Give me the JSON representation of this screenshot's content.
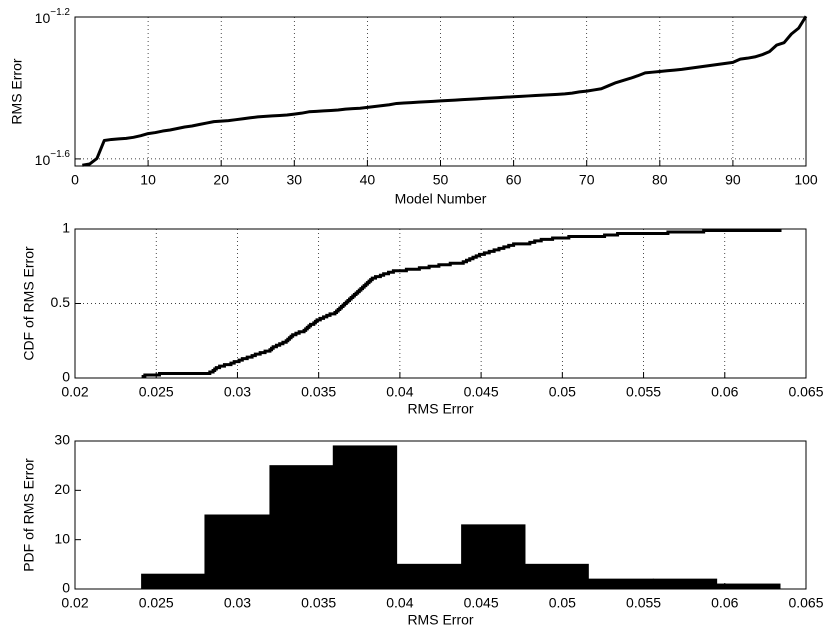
{
  "chart_data": [
    {
      "type": "line",
      "xlabel": "Model Number",
      "ylabel": "RMS Error",
      "yscale": "log",
      "grid": true,
      "color": "#000000",
      "xlim": [
        0,
        100
      ],
      "xticks": [
        0,
        10,
        20,
        30,
        40,
        50,
        60,
        70,
        80,
        90,
        100
      ],
      "ylim": [
        0.023988,
        0.063096
      ],
      "yticks": [
        {
          "value": 0.025119,
          "label": "10^−1.6"
        },
        {
          "value": 0.063096,
          "label": "10^−1.2"
        }
      ],
      "x": [
        1,
        2,
        3,
        4,
        5,
        6,
        7,
        8,
        9,
        10,
        11,
        12,
        13,
        14,
        15,
        16,
        17,
        18,
        19,
        20,
        21,
        22,
        23,
        24,
        25,
        26,
        27,
        28,
        29,
        30,
        31,
        32,
        33,
        34,
        35,
        36,
        37,
        38,
        39,
        40,
        41,
        42,
        43,
        44,
        45,
        46,
        47,
        48,
        49,
        50,
        51,
        52,
        53,
        54,
        55,
        56,
        57,
        58,
        59,
        60,
        61,
        62,
        63,
        64,
        65,
        66,
        67,
        68,
        69,
        70,
        71,
        72,
        73,
        74,
        75,
        76,
        77,
        78,
        79,
        80,
        81,
        82,
        83,
        84,
        85,
        86,
        87,
        88,
        89,
        90,
        91,
        92,
        93,
        94,
        95,
        96,
        97,
        98,
        99,
        100
      ],
      "values": [
        0.0241,
        0.0243,
        0.0252,
        0.0283,
        0.0285,
        0.0286,
        0.0287,
        0.0289,
        0.0292,
        0.0296,
        0.0298,
        0.0301,
        0.0303,
        0.0306,
        0.0309,
        0.0311,
        0.0314,
        0.0317,
        0.032,
        0.0321,
        0.0322,
        0.0324,
        0.0326,
        0.0328,
        0.033,
        0.0331,
        0.0332,
        0.0333,
        0.0334,
        0.0336,
        0.0338,
        0.0341,
        0.0342,
        0.0343,
        0.0344,
        0.0345,
        0.0347,
        0.0348,
        0.0349,
        0.0351,
        0.0353,
        0.0355,
        0.0357,
        0.036,
        0.0361,
        0.0362,
        0.0363,
        0.0364,
        0.0365,
        0.0366,
        0.0367,
        0.0368,
        0.0369,
        0.037,
        0.0371,
        0.0372,
        0.0373,
        0.0374,
        0.0375,
        0.0376,
        0.0377,
        0.0378,
        0.0379,
        0.038,
        0.0381,
        0.0382,
        0.0383,
        0.0385,
        0.0388,
        0.039,
        0.0393,
        0.0396,
        0.0404,
        0.0412,
        0.0418,
        0.0424,
        0.0431,
        0.0439,
        0.0441,
        0.0443,
        0.0445,
        0.0447,
        0.0449,
        0.0452,
        0.0455,
        0.0458,
        0.0461,
        0.0464,
        0.0467,
        0.047,
        0.048,
        0.0483,
        0.0487,
        0.0494,
        0.0504,
        0.0526,
        0.0534,
        0.0565,
        0.0587,
        0.0634
      ]
    },
    {
      "type": "step",
      "xlabel": "RMS Error",
      "ylabel": "CDF of RMS Error",
      "grid": true,
      "color": "#000000",
      "xlim": [
        0.02,
        0.065
      ],
      "xticks": [
        0.02,
        0.025,
        0.03,
        0.035,
        0.04,
        0.045,
        0.05,
        0.055,
        0.06,
        0.065
      ],
      "ylim": [
        0,
        1
      ],
      "yticks": [
        0,
        0.5,
        1
      ],
      "x": [
        0.0241,
        0.0243,
        0.0252,
        0.0283,
        0.0285,
        0.0286,
        0.0287,
        0.0289,
        0.0292,
        0.0296,
        0.0298,
        0.0301,
        0.0303,
        0.0306,
        0.0309,
        0.0311,
        0.0314,
        0.0317,
        0.032,
        0.0321,
        0.0322,
        0.0324,
        0.0326,
        0.0328,
        0.033,
        0.0331,
        0.0332,
        0.0333,
        0.0334,
        0.0336,
        0.0338,
        0.0341,
        0.0342,
        0.0343,
        0.0344,
        0.0345,
        0.0347,
        0.0348,
        0.0349,
        0.0351,
        0.0353,
        0.0355,
        0.0357,
        0.036,
        0.0361,
        0.0362,
        0.0363,
        0.0364,
        0.0365,
        0.0366,
        0.0367,
        0.0368,
        0.0369,
        0.037,
        0.0371,
        0.0372,
        0.0373,
        0.0374,
        0.0375,
        0.0376,
        0.0377,
        0.0378,
        0.0379,
        0.038,
        0.0381,
        0.0382,
        0.0383,
        0.0385,
        0.0388,
        0.039,
        0.0393,
        0.0396,
        0.0404,
        0.0412,
        0.0418,
        0.0424,
        0.0431,
        0.0439,
        0.0441,
        0.0443,
        0.0445,
        0.0447,
        0.0449,
        0.0452,
        0.0455,
        0.0458,
        0.0461,
        0.0464,
        0.0467,
        0.047,
        0.048,
        0.0483,
        0.0487,
        0.0494,
        0.0504,
        0.0526,
        0.0534,
        0.0565,
        0.0587,
        0.0634
      ],
      "values": [
        0.01,
        0.02,
        0.03,
        0.04,
        0.05,
        0.06,
        0.07,
        0.08,
        0.09,
        0.1,
        0.11,
        0.12,
        0.13,
        0.14,
        0.15,
        0.16,
        0.17,
        0.18,
        0.19,
        0.2,
        0.21,
        0.22,
        0.23,
        0.24,
        0.25,
        0.26,
        0.27,
        0.28,
        0.29,
        0.3,
        0.31,
        0.32,
        0.33,
        0.34,
        0.35,
        0.36,
        0.37,
        0.38,
        0.39,
        0.4,
        0.41,
        0.42,
        0.43,
        0.44,
        0.45,
        0.46,
        0.47,
        0.48,
        0.49,
        0.5,
        0.51,
        0.52,
        0.53,
        0.54,
        0.55,
        0.56,
        0.57,
        0.58,
        0.59,
        0.6,
        0.61,
        0.62,
        0.63,
        0.64,
        0.65,
        0.66,
        0.67,
        0.68,
        0.69,
        0.7,
        0.71,
        0.72,
        0.73,
        0.74,
        0.75,
        0.76,
        0.77,
        0.78,
        0.79,
        0.8,
        0.81,
        0.82,
        0.83,
        0.84,
        0.85,
        0.86,
        0.87,
        0.88,
        0.89,
        0.9,
        0.91,
        0.92,
        0.93,
        0.94,
        0.95,
        0.96,
        0.97,
        0.98,
        0.99,
        1
      ]
    },
    {
      "type": "histogram",
      "xlabel": "RMS Error",
      "ylabel": "PDF of RMS Error",
      "grid": false,
      "color": "#000000",
      "xlim": [
        0.02,
        0.065
      ],
      "xticks": [
        0.02,
        0.025,
        0.03,
        0.035,
        0.04,
        0.045,
        0.05,
        0.055,
        0.06,
        0.065
      ],
      "ylim": [
        0,
        30
      ],
      "yticks": [
        0,
        10,
        20,
        30
      ],
      "bins": [
        0.0241,
        0.028,
        0.032,
        0.0359,
        0.0398,
        0.0438,
        0.0477,
        0.0516,
        0.0556,
        0.0595,
        0.0634
      ],
      "values": [
        3,
        15,
        25,
        29,
        5,
        13,
        5,
        2,
        2,
        1
      ]
    }
  ]
}
